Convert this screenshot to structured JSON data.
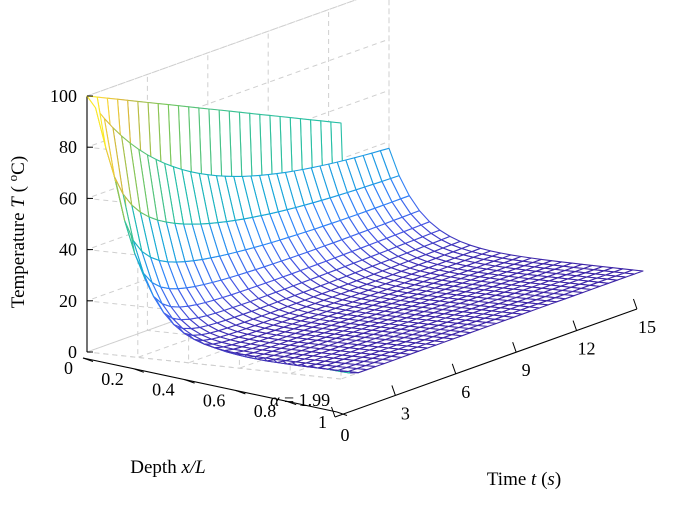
{
  "chart_data": {
    "type": "surface",
    "title": "",
    "annotation": {
      "symbol": "α",
      "text": " = 1.99"
    },
    "axes": {
      "x": {
        "label_prefix": "Time ",
        "label_var": "t",
        "label_unit": "s",
        "range": [
          0,
          15
        ],
        "ticks": [
          0,
          3,
          6,
          9,
          12,
          15
        ]
      },
      "y": {
        "label_prefix": "Depth ",
        "label_var": "x/L",
        "range": [
          0,
          1
        ],
        "ticks": [
          0,
          0.2,
          0.4,
          0.6,
          0.8,
          1
        ],
        "tick_labels": [
          "0",
          "0.2",
          "0.4",
          "0.6",
          "0.8",
          "1"
        ]
      },
      "z": {
        "label_prefix": "Temperature ",
        "label_var": "T",
        "label_unit_sup": "o",
        "label_unit": "C",
        "range": [
          0,
          100
        ],
        "ticks": [
          0,
          20,
          40,
          60,
          80,
          100
        ]
      }
    },
    "grid": true,
    "colormap": [
      "#3e26a8",
      "#4658e6",
      "#2f86f8",
      "#17a8d8",
      "#21bfaa",
      "#7ac75a",
      "#d8b93b",
      "#fbd93a",
      "#f9fb0e"
    ],
    "model": {
      "description_free": true,
      "T_start": 100,
      "T_end_surface": 35,
      "decay_rate_t": 0.22,
      "depth_decay": 14,
      "t_mesh": 35,
      "x_mesh": 25
    }
  }
}
